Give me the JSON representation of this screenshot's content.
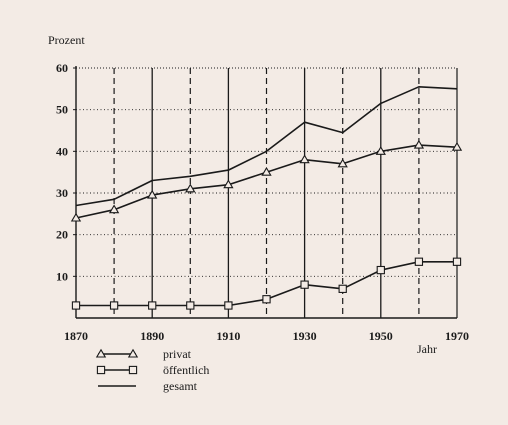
{
  "chart_data": {
    "type": "line",
    "ylabel": "Prozent",
    "xlabel": "Jahr",
    "x": [
      1870,
      1880,
      1890,
      1900,
      1910,
      1920,
      1930,
      1940,
      1950,
      1960,
      1970
    ],
    "x_tick_labels": [
      "1870",
      "1890",
      "1910",
      "1930",
      "1950",
      "1970"
    ],
    "y_tick_labels": [
      "10",
      "20",
      "30",
      "40",
      "50",
      "60"
    ],
    "xlim": [
      1870,
      1970
    ],
    "ylim": [
      0,
      60
    ],
    "grid": "horizontal dotted lines at each 10; dashed vertical lines each decade",
    "legend_position": "bottom-left",
    "series": [
      {
        "name": "privat",
        "marker": "triangle",
        "values": [
          24,
          26,
          29.5,
          31,
          32,
          35,
          38,
          37,
          40,
          41.5,
          41
        ]
      },
      {
        "name": "öffentlich",
        "marker": "square",
        "values": [
          3,
          3,
          3,
          3,
          3,
          4.5,
          8,
          7,
          11.5,
          13.5,
          13.5
        ]
      },
      {
        "name": "gesamt",
        "marker": "none",
        "values": [
          27,
          28.5,
          33,
          34,
          35.5,
          40,
          47,
          44.5,
          51.5,
          55.5,
          55
        ]
      }
    ]
  }
}
